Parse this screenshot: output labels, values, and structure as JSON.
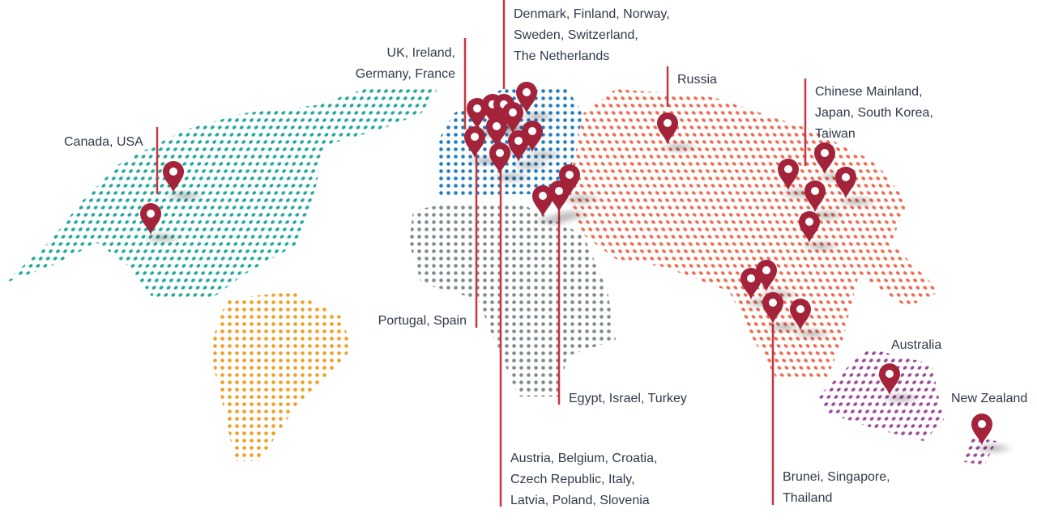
{
  "labels": [
    {
      "lines": [
        "Canada, USA"
      ]
    },
    {
      "lines": [
        "UK, Ireland,",
        "Germany, France"
      ]
    },
    {
      "lines": [
        "Denmark, Finland, Norway,",
        "Sweden, Switzerland,",
        "The Netherlands"
      ]
    },
    {
      "lines": [
        "Russia"
      ]
    },
    {
      "lines": [
        "Chinese Mainland,",
        "Japan, South Korea,",
        "Taiwan"
      ]
    },
    {
      "lines": [
        "Portugal, Spain"
      ]
    },
    {
      "lines": [
        "Egypt, Israel, Turkey"
      ]
    },
    {
      "lines": [
        "Austria, Belgium, Croatia,",
        "Czech Republic, Italy,",
        "Latvia, Poland, Slovenia"
      ]
    },
    {
      "lines": [
        "Brunei, Singapore,",
        "Thailand"
      ]
    },
    {
      "lines": [
        "Australia"
      ]
    },
    {
      "lines": [
        "New Zealand"
      ]
    }
  ]
}
